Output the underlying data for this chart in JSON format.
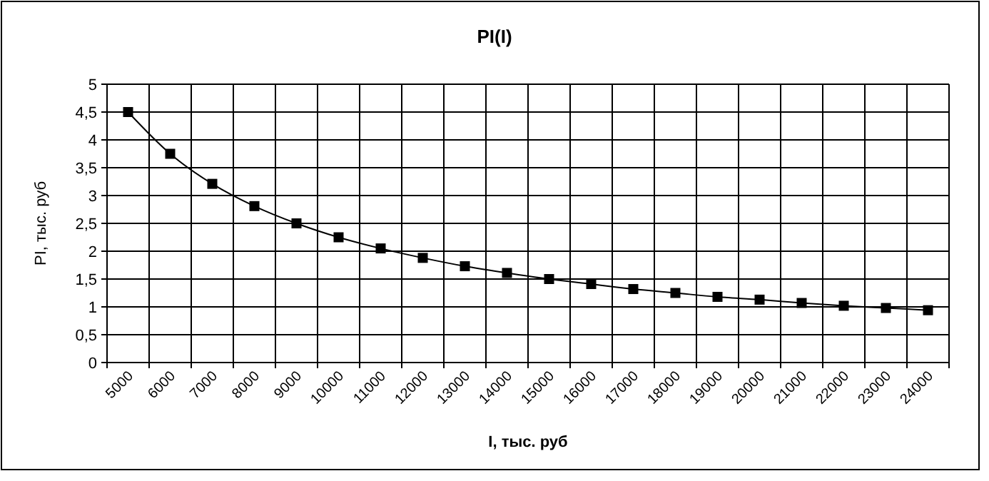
{
  "chart_data": {
    "type": "line",
    "title": "PI(I)",
    "xlabel": "I, тыс. руб",
    "ylabel": "PI, тыс. руб",
    "categories": [
      "5000",
      "6000",
      "7000",
      "8000",
      "9000",
      "10000",
      "11000",
      "12000",
      "13000",
      "14000",
      "15000",
      "16000",
      "17000",
      "18000",
      "19000",
      "20000",
      "21000",
      "22000",
      "23000",
      "24000"
    ],
    "series": [
      {
        "color": "#000000",
        "values": [
          4.5,
          3.75,
          3.21,
          2.81,
          2.5,
          2.25,
          2.05,
          1.88,
          1.73,
          1.61,
          1.5,
          1.41,
          1.32,
          1.25,
          1.18,
          1.13,
          1.07,
          1.02,
          0.98,
          0.94
        ]
      }
    ],
    "ylim": [
      0,
      5
    ],
    "yticks": [
      0,
      {
        "value": 0.5,
        "label": "0,5"
      },
      1,
      {
        "value": 1.5,
        "label": "1,5"
      },
      2,
      {
        "value": 2.5,
        "label": "2,5"
      },
      3,
      {
        "value": 3.5,
        "label": "3,5"
      },
      4,
      {
        "value": 4.5,
        "label": "4,5"
      },
      5
    ],
    "grid": true,
    "marker": "square",
    "line_style": "solid"
  }
}
